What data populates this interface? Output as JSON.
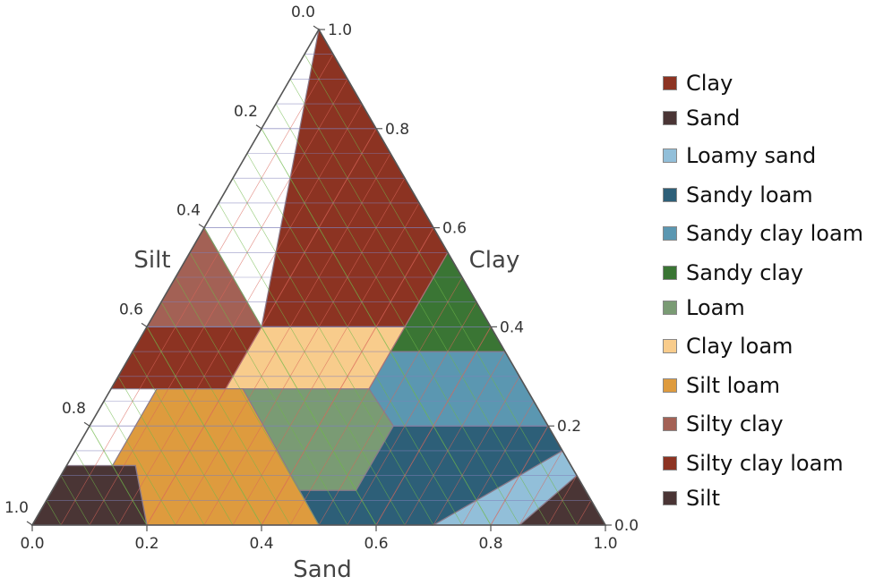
{
  "chart_data": {
    "type": "ternary",
    "axes": {
      "bottom": {
        "label": "Sand",
        "ticks": [
          "0.0",
          "0.2",
          "0.4",
          "0.6",
          "0.8",
          "1.0"
        ]
      },
      "right": {
        "label": "Clay",
        "ticks": [
          "0.0",
          "0.2",
          "0.4",
          "0.6",
          "0.8",
          "1.0"
        ]
      },
      "left": {
        "label": "Silt",
        "ticks": [
          "0.0",
          "0.2",
          "0.4",
          "0.6",
          "0.8",
          "1.0"
        ]
      },
      "range": [
        0,
        1
      ],
      "grid": true
    },
    "regions": [
      {
        "name": "Clay",
        "color": "#8c3322",
        "points": [
          [
            0.45,
            0.55
          ],
          [
            0.45,
            0.4
          ],
          [
            0.65,
            0.4
          ],
          [
            0.2,
            0.4
          ],
          [
            0.0,
            1.0
          ]
        ],
        "vertices": [
          [
            0,
            1
          ],
          [
            0.45,
            0.55
          ],
          [
            0.45,
            0.4
          ],
          [
            0.2,
            0.4
          ]
        ]
      },
      {
        "name": "Sand",
        "color": "#4a3535",
        "vertices": [
          [
            0.85,
            0
          ],
          [
            1,
            0
          ],
          [
            0.9,
            0.1
          ]
        ]
      },
      {
        "name": "Loamy sand",
        "color": "#92bfd9",
        "vertices": [
          [
            0.7,
            0
          ],
          [
            0.85,
            0
          ],
          [
            0.9,
            0.1
          ],
          [
            0.85,
            0.15
          ]
        ]
      },
      {
        "name": "Sandy loam",
        "color": "#2d5f78",
        "vertices": [
          [
            0.5,
            0
          ],
          [
            0.7,
            0
          ],
          [
            0.85,
            0.15
          ],
          [
            0.8,
            0.2
          ],
          [
            0.53,
            0.2
          ],
          [
            0.53,
            0.07
          ],
          [
            0.43,
            0.07
          ],
          [
            0.5,
            0
          ]
        ]
      },
      {
        "name": "Sandy clay loam",
        "color": "#5b97b1",
        "vertices": [
          [
            0.45,
            0.35
          ],
          [
            0.65,
            0.35
          ],
          [
            0.8,
            0.2
          ],
          [
            0.53,
            0.2
          ],
          [
            0.45,
            0.275
          ]
        ]
      },
      {
        "name": "Sandy clay",
        "color": "#3a7534",
        "vertices": [
          [
            0.45,
            0.55
          ],
          [
            0.65,
            0.35
          ],
          [
            0.45,
            0.35
          ]
        ]
      },
      {
        "name": "Loam",
        "color": "#7a9b74",
        "vertices": [
          [
            0.23,
            0.275
          ],
          [
            0.45,
            0.275
          ],
          [
            0.53,
            0.2
          ],
          [
            0.53,
            0.07
          ],
          [
            0.43,
            0.07
          ],
          [
            0.23,
            0.275
          ]
        ]
      },
      {
        "name": "Clay loam",
        "color": "#f8cc8c",
        "vertices": [
          [
            0.2,
            0.4
          ],
          [
            0.45,
            0.4
          ],
          [
            0.45,
            0.275
          ],
          [
            0.2,
            0.275
          ]
        ]
      },
      {
        "name": "Silt loam",
        "color": "#de9b3e",
        "vertices": [
          [
            0.08,
            0.275
          ],
          [
            0.23,
            0.275
          ],
          [
            0.5,
            0
          ],
          [
            0.2,
            0
          ],
          [
            0.12,
            0.12
          ],
          [
            0.08,
            0.12
          ]
        ]
      },
      {
        "name": "Silty clay",
        "color": "#a36155",
        "vertices": [
          [
            0.0,
            0.6
          ],
          [
            0.2,
            0.4
          ],
          [
            0.0,
            0.4
          ]
        ]
      },
      {
        "name": "Silty clay loam",
        "color": "#8c3322",
        "vertices": [
          [
            0.0,
            0.4
          ],
          [
            0.2,
            0.4
          ],
          [
            0.2,
            0.275
          ],
          [
            0.0,
            0.275
          ]
        ]
      },
      {
        "name": "Silt",
        "color": "#4a3535",
        "vertices": [
          [
            0.0,
            0.12
          ],
          [
            0.12,
            0.12
          ],
          [
            0.2,
            0
          ],
          [
            0.0,
            0
          ]
        ]
      }
    ],
    "legend": {
      "placement": "right"
    }
  },
  "legend_items": [
    {
      "label": "Clay",
      "color": "#8c3322"
    },
    {
      "label": "Sand",
      "color": "#4a3535"
    },
    {
      "label": "Loamy sand",
      "color": "#92bfd9"
    },
    {
      "label": "Sandy loam",
      "color": "#2d5f78"
    },
    {
      "label": "Sandy clay loam",
      "color": "#5b97b1"
    },
    {
      "label": "Sandy clay",
      "color": "#3a7534"
    },
    {
      "label": "Loam",
      "color": "#7a9b74"
    },
    {
      "label": "Clay loam",
      "color": "#f8cc8c"
    },
    {
      "label": "Silt loam",
      "color": "#de9b3e"
    },
    {
      "label": "Silty clay",
      "color": "#a36155"
    },
    {
      "label": "Silty clay loam",
      "color": "#8c3322"
    },
    {
      "label": "Silt",
      "color": "#4a3535"
    }
  ]
}
